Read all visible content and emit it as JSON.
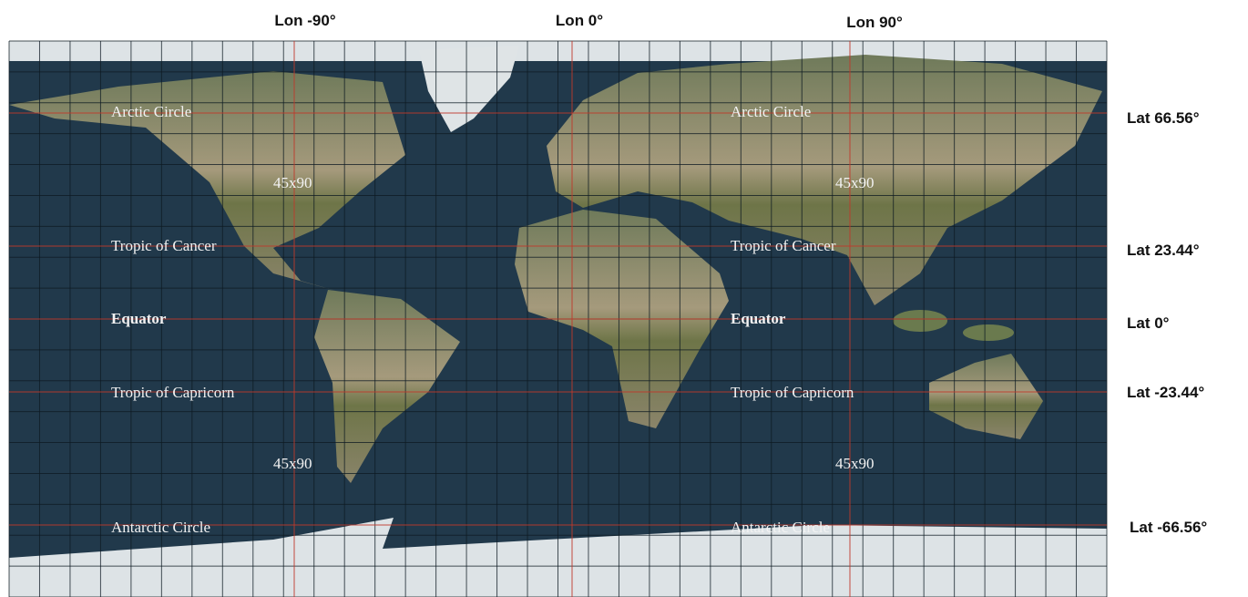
{
  "lon_labels": [
    "Lon -90°",
    "Lon 0°",
    "Lon 90°"
  ],
  "lat_labels": [
    "Lat 66.56°",
    "Lat 23.44°",
    "Lat 0°",
    "Lat -23.44°",
    "Lat -66.56°"
  ],
  "west_labels": [
    "Arctic Circle",
    "45x90",
    "Tropic of Cancer",
    "Equator",
    "Tropic of Capricorn",
    "45x90",
    "Antarctic Circle"
  ],
  "east_labels": [
    "Arctic Circle",
    "45x90",
    "Tropic of Cancer",
    "Equator",
    "Tropic of Capricorn",
    "45x90",
    "Antarctic Circle"
  ]
}
